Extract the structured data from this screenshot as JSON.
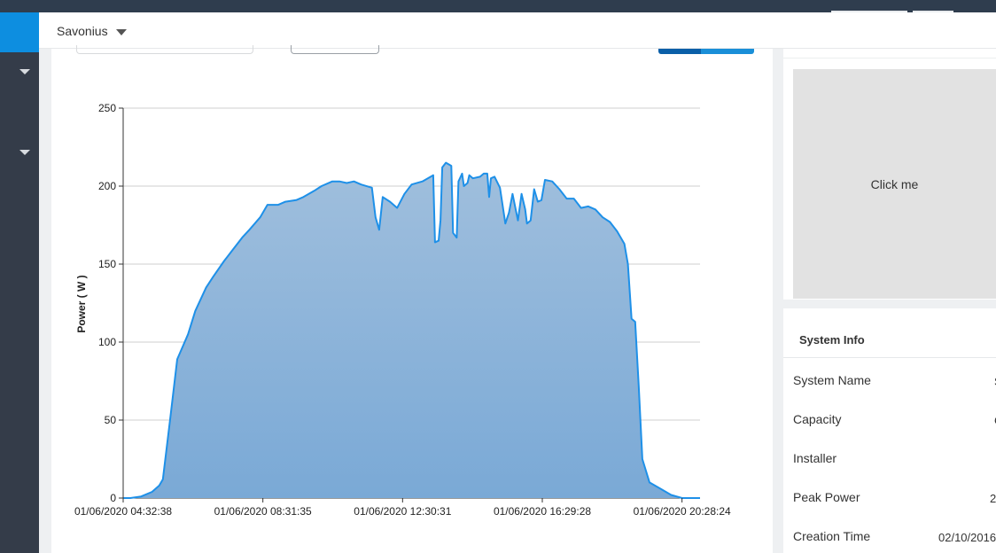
{
  "header": {
    "site_name": "Savonius"
  },
  "placeholder": {
    "label": "Click me"
  },
  "system_info": {
    "title": "System Info",
    "rows": [
      {
        "label": "System Name",
        "value": "S"
      },
      {
        "label": "Capacity",
        "value": "C"
      },
      {
        "label": "Installer",
        "value": ""
      },
      {
        "label": "Peak Power",
        "value": "2"
      },
      {
        "label": "Creation Time",
        "value": "02/10/2016"
      }
    ]
  },
  "chart_data": {
    "type": "area",
    "title": "",
    "xlabel": "",
    "ylabel": "Power ( W )",
    "ylim": [
      0,
      250
    ],
    "yticks": [
      0,
      50,
      100,
      150,
      200,
      250
    ],
    "xticks": [
      "01/06/2020 04:32:38",
      "01/06/2020 08:31:35",
      "01/06/2020 12:30:31",
      "01/06/2020 16:29:28",
      "01/06/2020 20:28:24"
    ],
    "grid": true,
    "colors": {
      "line": "#1e90e8",
      "fill_top": "#a0bfdd",
      "fill_bottom": "#7aa9d6"
    },
    "series": [
      {
        "values": [
          [
            0,
            0
          ],
          [
            0.2,
            0
          ],
          [
            0.5,
            1
          ],
          [
            0.8,
            4
          ],
          [
            1.0,
            8
          ],
          [
            1.1,
            12
          ],
          [
            1.3,
            50
          ],
          [
            1.5,
            89
          ],
          [
            1.8,
            105
          ],
          [
            2.0,
            120
          ],
          [
            2.3,
            135
          ],
          [
            2.5,
            142
          ],
          [
            2.8,
            152
          ],
          [
            3.0,
            158
          ],
          [
            3.3,
            167
          ],
          [
            3.5,
            172
          ],
          [
            3.8,
            180
          ],
          [
            4.0,
            188
          ],
          [
            4.3,
            188
          ],
          [
            4.5,
            190
          ],
          [
            4.8,
            191
          ],
          [
            5.0,
            193
          ],
          [
            5.3,
            197
          ],
          [
            5.5,
            200
          ],
          [
            5.8,
            203
          ],
          [
            6.0,
            203
          ],
          [
            6.2,
            202
          ],
          [
            6.4,
            203
          ],
          [
            6.6,
            201
          ],
          [
            6.9,
            199
          ],
          [
            7.0,
            180
          ],
          [
            7.1,
            172
          ],
          [
            7.2,
            193
          ],
          [
            7.4,
            190
          ],
          [
            7.6,
            186
          ],
          [
            7.8,
            195
          ],
          [
            8.0,
            201
          ],
          [
            8.3,
            203
          ],
          [
            8.6,
            207
          ],
          [
            8.65,
            164
          ],
          [
            8.75,
            165
          ],
          [
            8.8,
            178
          ],
          [
            8.85,
            212
          ],
          [
            8.95,
            215
          ],
          [
            9.1,
            213
          ],
          [
            9.15,
            170
          ],
          [
            9.25,
            167
          ],
          [
            9.3,
            203
          ],
          [
            9.4,
            208
          ],
          [
            9.45,
            200
          ],
          [
            9.55,
            202
          ],
          [
            9.6,
            207
          ],
          [
            9.7,
            205
          ],
          [
            9.9,
            206
          ],
          [
            10.0,
            208
          ],
          [
            10.1,
            208
          ],
          [
            10.15,
            193
          ],
          [
            10.2,
            205
          ],
          [
            10.3,
            206
          ],
          [
            10.45,
            199
          ],
          [
            10.6,
            176
          ],
          [
            10.7,
            183
          ],
          [
            10.8,
            195
          ],
          [
            10.95,
            178
          ],
          [
            11.05,
            195
          ],
          [
            11.15,
            185
          ],
          [
            11.2,
            176
          ],
          [
            11.3,
            178
          ],
          [
            11.4,
            198
          ],
          [
            11.5,
            190
          ],
          [
            11.6,
            191
          ],
          [
            11.7,
            204
          ],
          [
            11.9,
            203
          ],
          [
            12.1,
            198
          ],
          [
            12.3,
            192
          ],
          [
            12.5,
            192
          ],
          [
            12.7,
            186
          ],
          [
            12.9,
            187
          ],
          [
            13.1,
            185
          ],
          [
            13.3,
            180
          ],
          [
            13.5,
            177
          ],
          [
            13.7,
            171
          ],
          [
            13.9,
            163
          ],
          [
            14.0,
            150
          ],
          [
            14.1,
            115
          ],
          [
            14.2,
            113
          ],
          [
            14.3,
            72
          ],
          [
            14.4,
            25
          ],
          [
            14.6,
            10
          ],
          [
            14.9,
            6
          ],
          [
            15.2,
            2
          ],
          [
            15.5,
            0
          ],
          [
            16.0,
            0
          ]
        ]
      }
    ]
  }
}
